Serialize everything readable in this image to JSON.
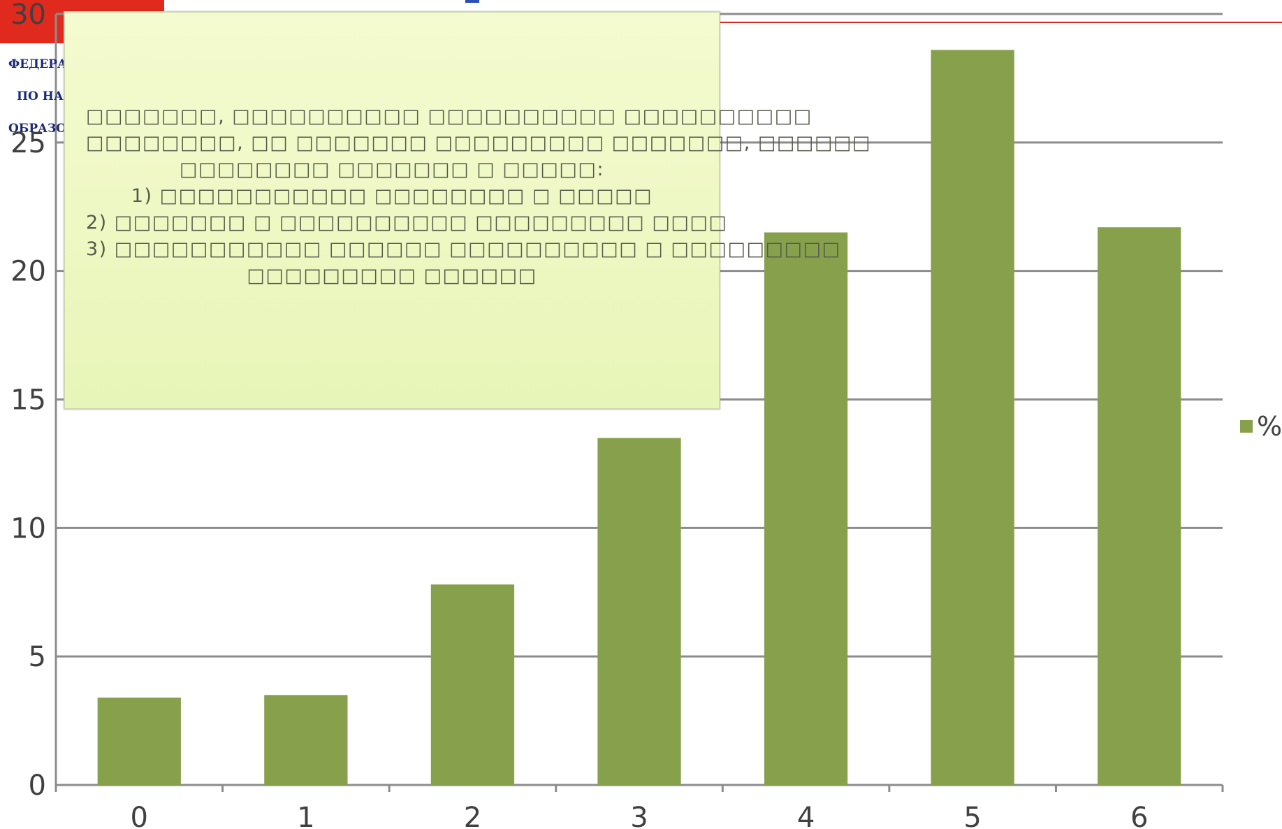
{
  "header": {
    "org_lines": [
      "ФЕДЕРАЛ",
      "ПО НАД",
      "ОБРАЗОВ"
    ]
  },
  "overlay": {
    "lines": [
      "□□□□□□□, □□□□□□□□□□ □□□□□□□□□□ □□□□□□□□□□",
      "□□□□□□□□, □□ □□□□□□□ □□□□□□□□□ □□□□□□□, □□□□□□",
      "□□□□□□□□ □□□□□□□ □ □□□□□:",
      "1) □□□□□□□□□□□ □□□□□□□□ □ □□□□□",
      "2) □□□□□□□ □ □□□□□□□□□□ □□□□□□□□□ □□□□",
      "3) □□□□□□□□□□□ □□□□□□ □□□□□□□□□□ □ □□□□□□□□□",
      "□□□□□□□□□ □□□□□□"
    ]
  },
  "colors": {
    "bar": "#86a04c",
    "grid": "#8c8c8c",
    "axis_text": "#404040",
    "red_brand": "#e02a1d"
  },
  "chart_data": {
    "type": "bar",
    "categories": [
      "0",
      "1",
      "2",
      "3",
      "4",
      "5",
      "6"
    ],
    "series": [
      {
        "name": "%",
        "values": [
          3.4,
          3.5,
          7.8,
          13.5,
          21.5,
          28.6,
          21.7
        ]
      }
    ],
    "ylim": [
      0,
      30
    ],
    "yticks": [
      "0",
      "5",
      "10",
      "15",
      "20",
      "25",
      "30"
    ],
    "title": "",
    "xlabel": "",
    "ylabel": "",
    "grid": true,
    "legend": "right"
  }
}
